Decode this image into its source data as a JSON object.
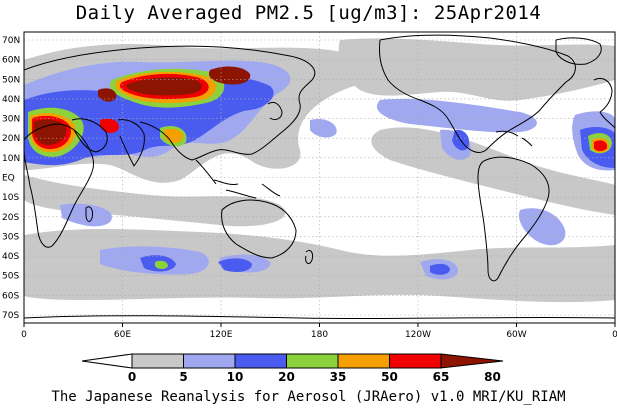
{
  "title": "Daily Averaged PM2.5 [ug/m3]: 25Apr2014",
  "footer": "The Japanese Reanalysis for Aerosol (JRAero) v1.0 MRI/KU_RIAM",
  "lat_labels": [
    "70N",
    "60N",
    "50N",
    "40N",
    "30N",
    "20N",
    "10N",
    "EQ",
    "10S",
    "20S",
    "30S",
    "40S",
    "50S",
    "60S",
    "70S"
  ],
  "lon_labels": [
    "0",
    "60E",
    "120E",
    "180",
    "120W",
    "60W",
    "0"
  ],
  "colorbar": {
    "thresholds": [
      "0",
      "5",
      "10",
      "20",
      "35",
      "50",
      "65",
      "80"
    ],
    "colors": [
      "#ffffff",
      "#c8c8c8",
      "#a0a8f0",
      "#4a5cf0",
      "#8cd23c",
      "#f5a000",
      "#f00000",
      "#8c1400"
    ]
  },
  "palette": {
    "ocean": "#ffffff",
    "grid": "#aaaaaa",
    "coast": "#000000"
  }
}
